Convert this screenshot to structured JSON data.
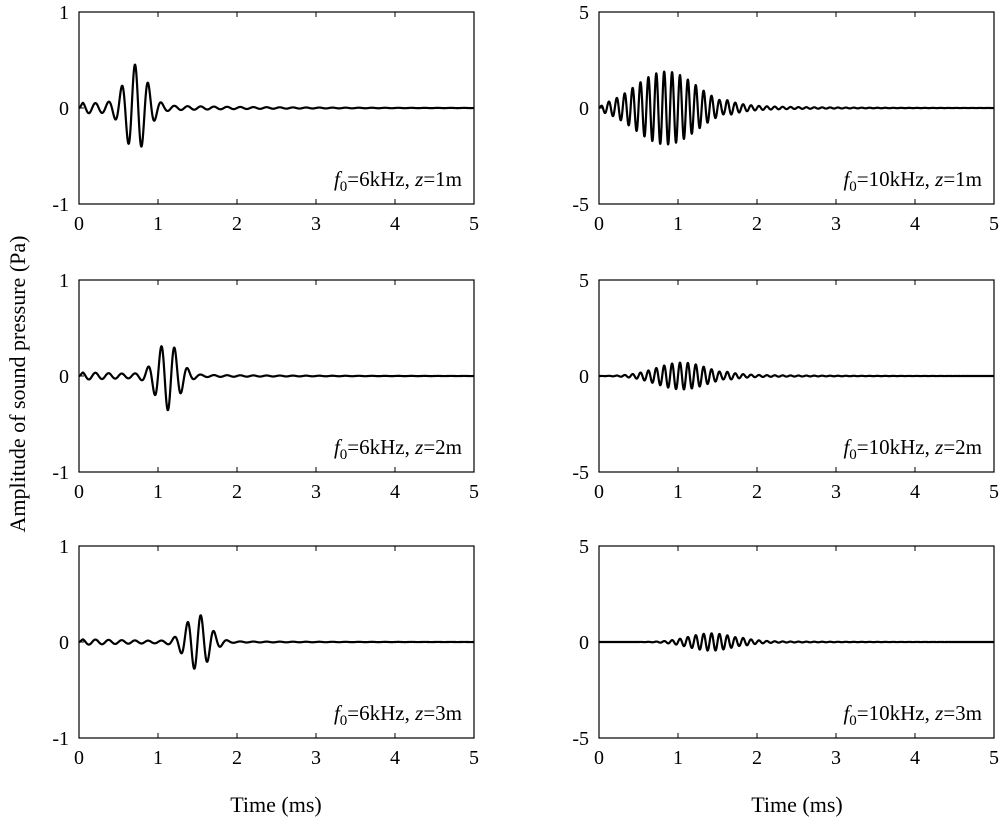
{
  "figure": {
    "ylabel": "Amplitude of sound pressure (Pa)",
    "xlabel": "Time (ms)"
  },
  "chart_data": [
    {
      "type": "line",
      "panel": "left-top",
      "label": {
        "f_symbol": "f",
        "f_sub": "0",
        "f_value": "=6kHz, ",
        "z_symbol": "z",
        "z_value": "=1m"
      },
      "xlim": [
        0,
        5
      ],
      "ylim": [
        -1,
        1
      ],
      "xticks": [
        0,
        1,
        2,
        3,
        4,
        5
      ],
      "yticks": [
        -1,
        0,
        1
      ],
      "signal": {
        "frequency_khz": 6,
        "center_ms": 0.72,
        "width_ms": 0.2,
        "peak_pa": 0.42,
        "tail_pa": 0.06,
        "tail_decay_ms": 1.2,
        "tail_start_ms": 0.0
      },
      "color": "#000000"
    },
    {
      "type": "line",
      "panel": "right-top",
      "label": {
        "f_symbol": "f",
        "f_sub": "0",
        "f_value": "=10kHz, ",
        "z_symbol": "z",
        "z_value": "=1m"
      },
      "xlim": [
        0,
        5
      ],
      "ylim": [
        -5,
        5
      ],
      "xticks": [
        0,
        1,
        2,
        3,
        4,
        5
      ],
      "yticks": [
        -5,
        0,
        5
      ],
      "signal": {
        "frequency_khz": 10,
        "center_ms": 0.85,
        "width_ms": 0.55,
        "peak_pa": 1.9,
        "tail_pa": 0.15,
        "tail_decay_ms": 0.8,
        "tail_start_ms": 1.6
      },
      "color": "#000000"
    },
    {
      "type": "line",
      "panel": "left-middle",
      "label": {
        "f_symbol": "f",
        "f_sub": "0",
        "f_value": "=6kHz, ",
        "z_symbol": "z",
        "z_value": "=2m"
      },
      "xlim": [
        0,
        5
      ],
      "ylim": [
        -1,
        1
      ],
      "xticks": [
        0,
        1,
        2,
        3,
        4,
        5
      ],
      "yticks": [
        -1,
        0,
        1
      ],
      "signal": {
        "frequency_khz": 6,
        "center_ms": 1.12,
        "width_ms": 0.2,
        "peak_pa": 0.34,
        "tail_pa": 0.04,
        "tail_decay_ms": 1.2,
        "tail_start_ms": 0.0
      },
      "color": "#000000"
    },
    {
      "type": "line",
      "panel": "right-middle",
      "label": {
        "f_symbol": "f",
        "f_sub": "0",
        "f_value": "=10kHz, ",
        "z_symbol": "z",
        "z_value": "=2m"
      },
      "xlim": [
        0,
        5
      ],
      "ylim": [
        -5,
        5
      ],
      "xticks": [
        0,
        1,
        2,
        3,
        4,
        5
      ],
      "yticks": [
        -5,
        0,
        5
      ],
      "signal": {
        "frequency_khz": 10,
        "center_ms": 1.05,
        "width_ms": 0.45,
        "peak_pa": 0.7,
        "tail_pa": 0.08,
        "tail_decay_ms": 0.8,
        "tail_start_ms": 1.6
      },
      "color": "#000000"
    },
    {
      "type": "line",
      "panel": "left-bottom",
      "label": {
        "f_symbol": "f",
        "f_sub": "0",
        "f_value": "=6kHz, ",
        "z_symbol": "z",
        "z_value": "=3m"
      },
      "xlim": [
        0,
        5
      ],
      "ylim": [
        -1,
        1
      ],
      "xticks": [
        0,
        1,
        2,
        3,
        4,
        5
      ],
      "yticks": [
        -1,
        0,
        1
      ],
      "signal": {
        "frequency_khz": 6,
        "center_ms": 1.5,
        "width_ms": 0.21,
        "peak_pa": 0.28,
        "tail_pa": 0.03,
        "tail_decay_ms": 1.2,
        "tail_start_ms": 0.0
      },
      "color": "#000000"
    },
    {
      "type": "line",
      "panel": "right-bottom",
      "label": {
        "f_symbol": "f",
        "f_sub": "0",
        "f_value": "=10kHz, ",
        "z_symbol": "z",
        "z_value": "=3m"
      },
      "xlim": [
        0,
        5
      ],
      "ylim": [
        -5,
        5
      ],
      "xticks": [
        0,
        1,
        2,
        3,
        4,
        5
      ],
      "yticks": [
        -5,
        0,
        5
      ],
      "signal": {
        "frequency_khz": 10,
        "center_ms": 1.42,
        "width_ms": 0.4,
        "peak_pa": 0.45,
        "tail_pa": 0.05,
        "tail_decay_ms": 0.8,
        "tail_start_ms": 1.8
      },
      "color": "#000000"
    }
  ]
}
